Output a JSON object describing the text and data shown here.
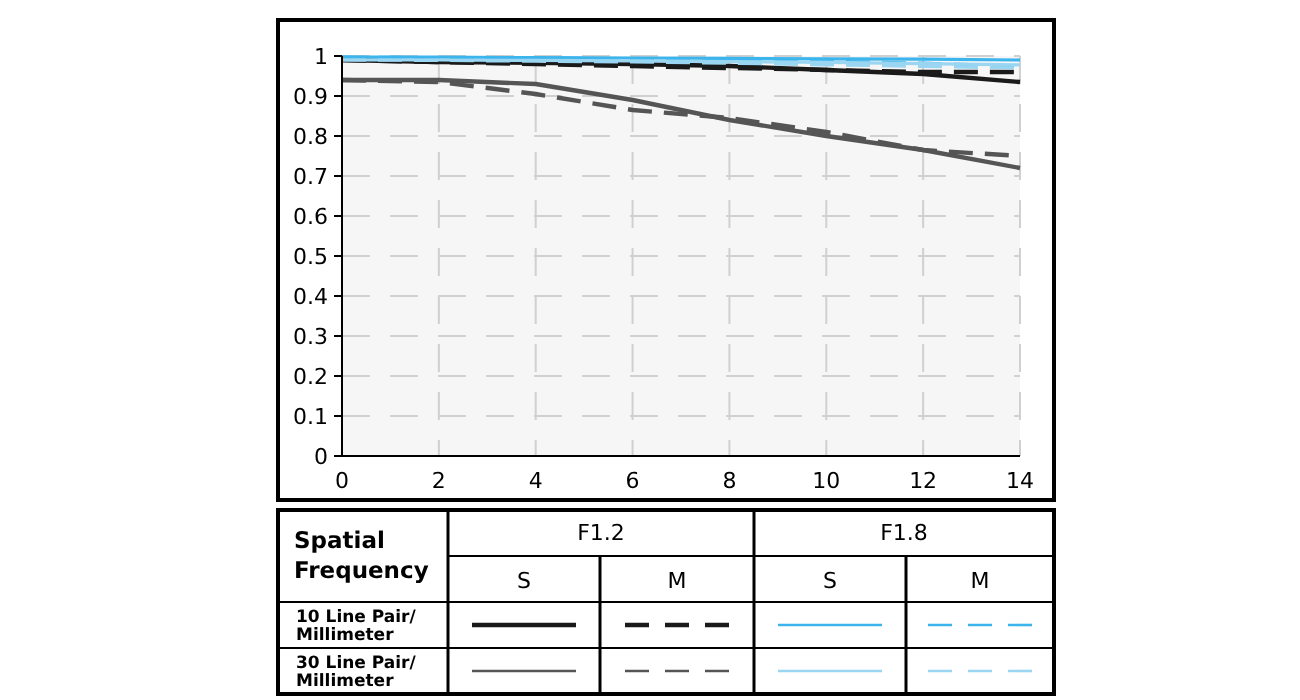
{
  "chart_data": {
    "type": "line",
    "x": [
      0,
      2,
      4,
      6,
      8,
      10,
      12,
      14
    ],
    "xlim": [
      0,
      14
    ],
    "xticks": [
      0,
      2,
      4,
      6,
      8,
      10,
      12,
      14
    ],
    "ylim": [
      0,
      1
    ],
    "yticks": [
      0,
      0.1,
      0.2,
      0.3,
      0.4,
      0.5,
      0.6,
      0.7,
      0.8,
      0.9,
      1
    ],
    "grid": true,
    "marker": "none",
    "series": [
      {
        "color": "#1a1a1a",
        "line_style": "solid",
        "values": [
          0.99,
          0.985,
          0.983,
          0.98,
          0.975,
          0.965,
          0.955,
          0.935
        ]
      },
      {
        "color": "#1a1a1a",
        "line_style": "dashed",
        "values": [
          0.99,
          0.985,
          0.98,
          0.975,
          0.97,
          0.965,
          0.96,
          0.96
        ]
      },
      {
        "color": "#3cb4ec",
        "line_style": "solid",
        "values": [
          0.997,
          0.997,
          0.996,
          0.995,
          0.994,
          0.993,
          0.992,
          0.99
        ]
      },
      {
        "color": "#3cb4ec",
        "line_style": "dashed",
        "values": [
          0.997,
          0.996,
          0.995,
          0.993,
          0.99,
          0.987,
          0.982,
          0.975
        ]
      },
      {
        "color": "#555555",
        "line_style": "solid",
        "values": [
          0.94,
          0.94,
          0.93,
          0.89,
          0.84,
          0.8,
          0.765,
          0.72
        ]
      },
      {
        "color": "#555555",
        "line_style": "dashed",
        "values": [
          0.94,
          0.935,
          0.905,
          0.865,
          0.845,
          0.81,
          0.765,
          0.75
        ]
      },
      {
        "color": "#9ad6f2",
        "line_style": "solid",
        "values": [
          0.99,
          0.99,
          0.989,
          0.988,
          0.986,
          0.984,
          0.981,
          0.978
        ]
      },
      {
        "color": "#9ad6f2",
        "line_style": "dashed",
        "values": [
          0.99,
          0.989,
          0.987,
          0.985,
          0.982,
          0.978,
          0.974,
          0.97
        ]
      }
    ],
    "annotations": [
      "Spatial Frequency",
      "F1.2",
      "F1.8",
      "S",
      "M",
      "S",
      "M",
      "10 Line Pair/ Millimeter",
      "30 Line Pair/ Millimeter"
    ]
  }
}
